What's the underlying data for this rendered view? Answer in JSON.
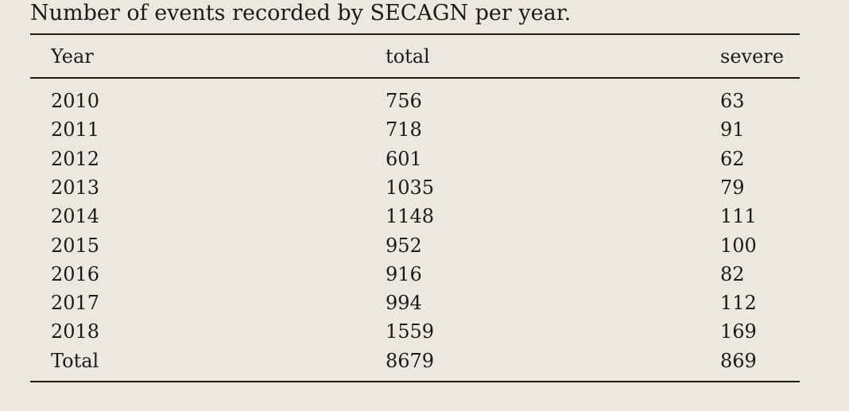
{
  "table": {
    "caption": "Number of events recorded by SECAGN per year.",
    "headers": [
      "Year",
      "total",
      "severe"
    ],
    "rows": [
      [
        "2010",
        "756",
        "63"
      ],
      [
        "2011",
        "718",
        "91"
      ],
      [
        "2012",
        "601",
        "62"
      ],
      [
        "2013",
        "1035",
        "79"
      ],
      [
        "2014",
        "1148",
        "111"
      ],
      [
        "2015",
        "952",
        "100"
      ],
      [
        "2016",
        "916",
        "82"
      ],
      [
        "2017",
        "994",
        "112"
      ],
      [
        "2018",
        "1559",
        "169"
      ],
      [
        "Total",
        "8679",
        "869"
      ]
    ]
  }
}
